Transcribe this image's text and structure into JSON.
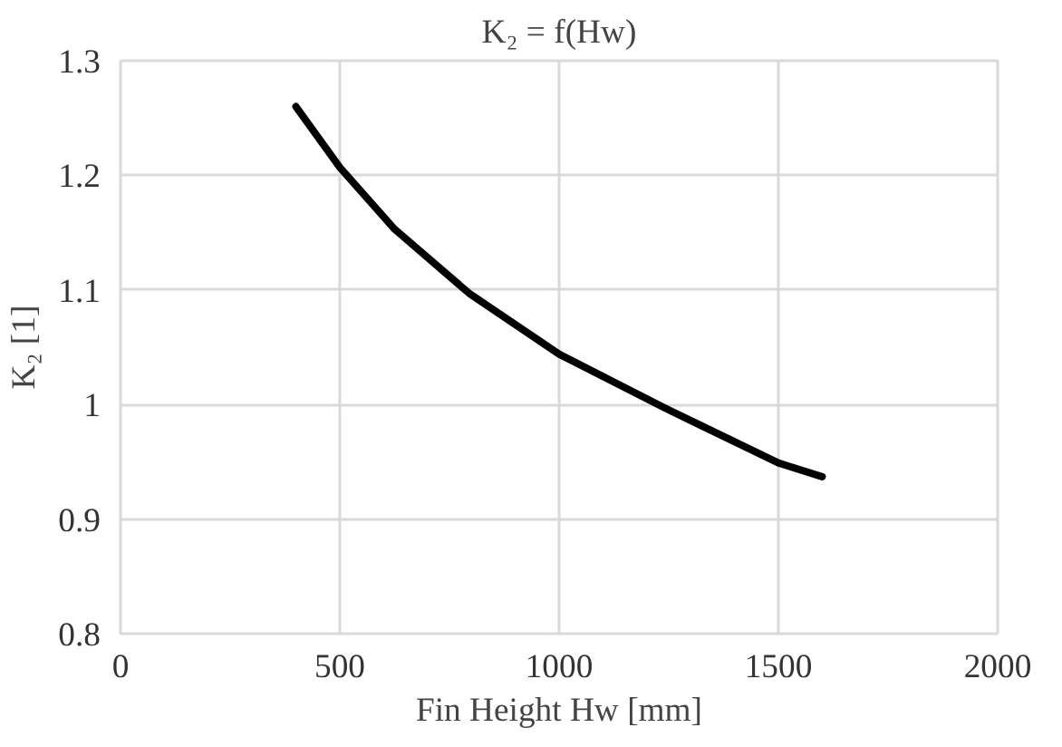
{
  "chart_data": {
    "type": "line",
    "title": "K₂ = f(Hw)",
    "xlabel": "Fin Height Hw [mm]",
    "ylabel": "K₂ [1]",
    "x": [
      400,
      500,
      625,
      795,
      1000,
      1241,
      1500,
      1600
    ],
    "series": [
      {
        "color": "#000000",
        "values": [
          1.26,
          1.207,
          1.153,
          1.097,
          1.044,
          0.997,
          0.949,
          0.937
        ]
      }
    ],
    "xlim": [
      0,
      2000
    ],
    "xticks": [
      0,
      500,
      1000,
      1500,
      2000
    ],
    "ylim": [
      0.8,
      1.3
    ],
    "yticks": [
      0.8,
      0.9,
      1,
      1.1,
      1.2,
      1.3
    ],
    "grid": true,
    "marker": "none",
    "line_style": "solid"
  }
}
